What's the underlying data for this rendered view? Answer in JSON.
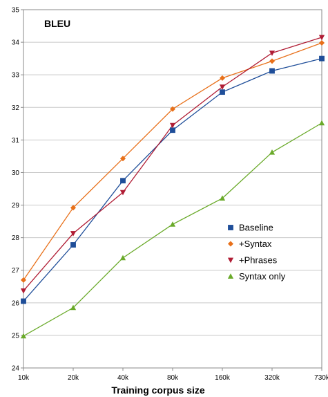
{
  "chart_data": {
    "type": "line",
    "title": "",
    "plot_label": "BLEU",
    "xlabel": "Training corpus size",
    "ylabel": "",
    "categories": [
      "10k",
      "20k",
      "40k",
      "80k",
      "160k",
      "320k",
      "730k"
    ],
    "ylim": [
      24,
      35
    ],
    "yticks": [
      24,
      25,
      26,
      27,
      28,
      29,
      30,
      31,
      32,
      33,
      34,
      35
    ],
    "grid": "horizontal",
    "legend_position": "right",
    "series": [
      {
        "name": "Baseline",
        "color": "#1f4e99",
        "marker": "square",
        "values": [
          26.05,
          27.78,
          29.75,
          31.3,
          32.47,
          33.12,
          33.5
        ]
      },
      {
        "name": "+Syntax",
        "color": "#e8701a",
        "marker": "diamond",
        "values": [
          26.7,
          28.92,
          30.43,
          31.95,
          32.9,
          33.42,
          33.98
        ]
      },
      {
        "name": "+Phrases",
        "color": "#b01c34",
        "marker": "triangle-down",
        "values": [
          26.37,
          28.13,
          29.39,
          31.45,
          32.63,
          33.67,
          34.15
        ]
      },
      {
        "name": "Syntax only",
        "color": "#6aaa2a",
        "marker": "triangle-up",
        "values": [
          24.98,
          25.85,
          27.38,
          28.41,
          29.21,
          30.62,
          31.52
        ]
      }
    ]
  }
}
